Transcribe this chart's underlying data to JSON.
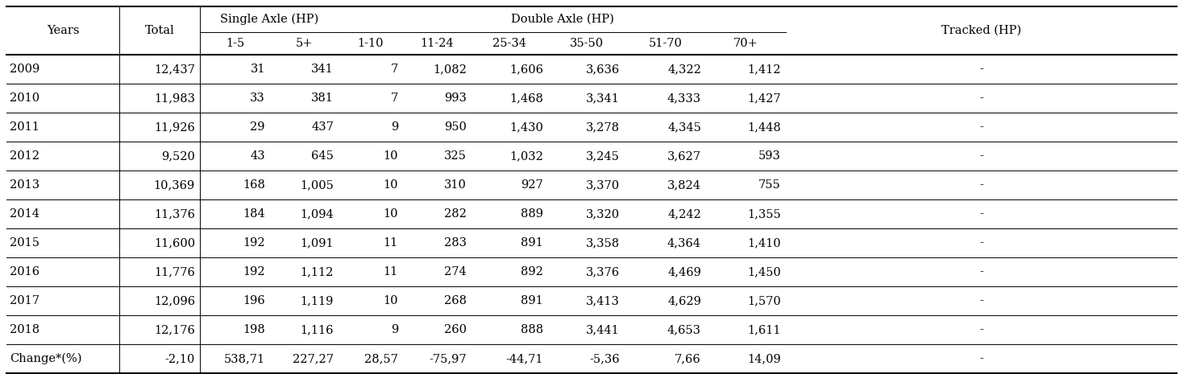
{
  "rows": [
    [
      "2009",
      "12,437",
      "31",
      "341",
      "7",
      "1,082",
      "1,606",
      "3,636",
      "4,322",
      "1,412",
      "-"
    ],
    [
      "2010",
      "11,983",
      "33",
      "381",
      "7",
      "993",
      "1,468",
      "3,341",
      "4,333",
      "1,427",
      "-"
    ],
    [
      "2011",
      "11,926",
      "29",
      "437",
      "9",
      "950",
      "1,430",
      "3,278",
      "4,345",
      "1,448",
      "-"
    ],
    [
      "2012",
      "9,520",
      "43",
      "645",
      "10",
      "325",
      "1,032",
      "3,245",
      "3,627",
      "593",
      "-"
    ],
    [
      "2013",
      "10,369",
      "168",
      "1,005",
      "10",
      "310",
      "927",
      "3,370",
      "3,824",
      "755",
      "-"
    ],
    [
      "2014",
      "11,376",
      "184",
      "1,094",
      "10",
      "282",
      "889",
      "3,320",
      "4,242",
      "1,355",
      "-"
    ],
    [
      "2015",
      "11,600",
      "192",
      "1,091",
      "11",
      "283",
      "891",
      "3,358",
      "4,364",
      "1,410",
      "-"
    ],
    [
      "2016",
      "11,776",
      "192",
      "1,112",
      "11",
      "274",
      "892",
      "3,376",
      "4,469",
      "1,450",
      "-"
    ],
    [
      "2017",
      "12,096",
      "196",
      "1,119",
      "10",
      "268",
      "891",
      "3,413",
      "4,629",
      "1,570",
      "-"
    ],
    [
      "2018",
      "12,176",
      "198",
      "1,116",
      "9",
      "260",
      "888",
      "3,441",
      "4,653",
      "1,611",
      "-"
    ],
    [
      "Change*(%)",
      "-2,10",
      "538,71",
      "227,27",
      "28,57",
      "-75,97",
      "-44,71",
      "-5,36",
      "7,66",
      "14,09",
      "-"
    ]
  ],
  "col_aligns": [
    "left",
    "right",
    "right",
    "right",
    "right",
    "right",
    "right",
    "right",
    "right",
    "right",
    "center"
  ],
  "bg_color": "#ffffff",
  "text_color": "#000000",
  "font_size": 10.5,
  "lw_thick": 1.5,
  "lw_thin": 0.7
}
